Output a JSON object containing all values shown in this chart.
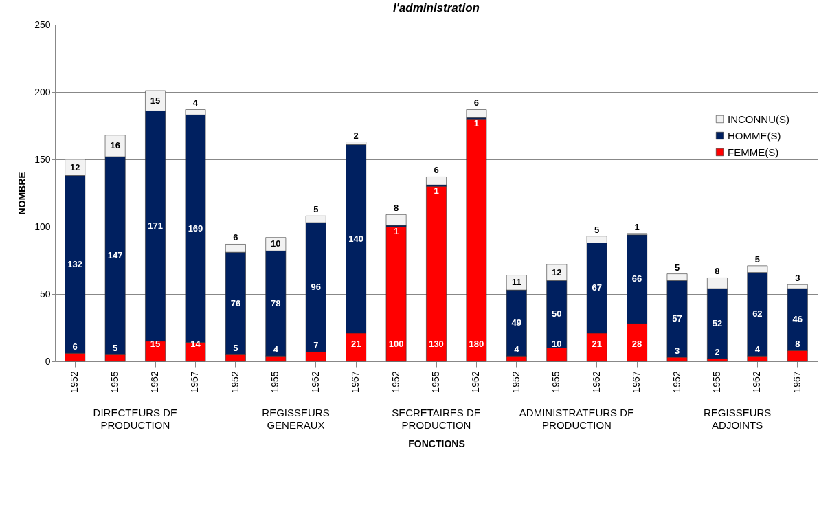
{
  "chart_data": {
    "type": "bar",
    "title": "l'administration",
    "xlabel": "FONCTIONS",
    "ylabel": "NOMBRE",
    "categories": [
      "1952",
      "1955",
      "1962",
      "1967",
      "1952",
      "1955",
      "1962",
      "1967",
      "1952",
      "1955",
      "1962",
      "1952",
      "1955",
      "1962",
      "1967",
      "1952",
      "1955",
      "1962",
      "1967"
    ],
    "annotations": [
      "DIRECTEURS DE PRODUCTION",
      "REGISSEURS GENERAUX",
      "SECRETAIRES DE PRODUCTION",
      "ADMINISTRATEURS DE PRODUCTION",
      "REGISSEURS ADJOINTS"
    ],
    "stacked": true,
    "data_labels": true,
    "grid": "y",
    "legend": "top right",
    "ylim": [
      0,
      250
    ],
    "yticks": [
      0,
      50,
      100,
      150,
      200,
      250
    ],
    "series": [
      {
        "name": "FEMME(S)",
        "color": "#ff0000",
        "values": [
          6,
          5,
          15,
          14,
          5,
          4,
          7,
          21,
          100,
          130,
          180,
          4,
          10,
          21,
          28,
          3,
          2,
          4,
          8
        ]
      },
      {
        "name": "HOMME(S)",
        "color": "#002060",
        "values": [
          132,
          147,
          171,
          169,
          76,
          78,
          96,
          140,
          1,
          1,
          1,
          49,
          50,
          67,
          66,
          57,
          52,
          62,
          46
        ]
      },
      {
        "name": "INCONNU(S)",
        "color": "#f2f2f2",
        "values": [
          12,
          16,
          15,
          4,
          6,
          10,
          5,
          2,
          8,
          6,
          6,
          11,
          12,
          5,
          1,
          5,
          8,
          5,
          3
        ]
      }
    ]
  }
}
